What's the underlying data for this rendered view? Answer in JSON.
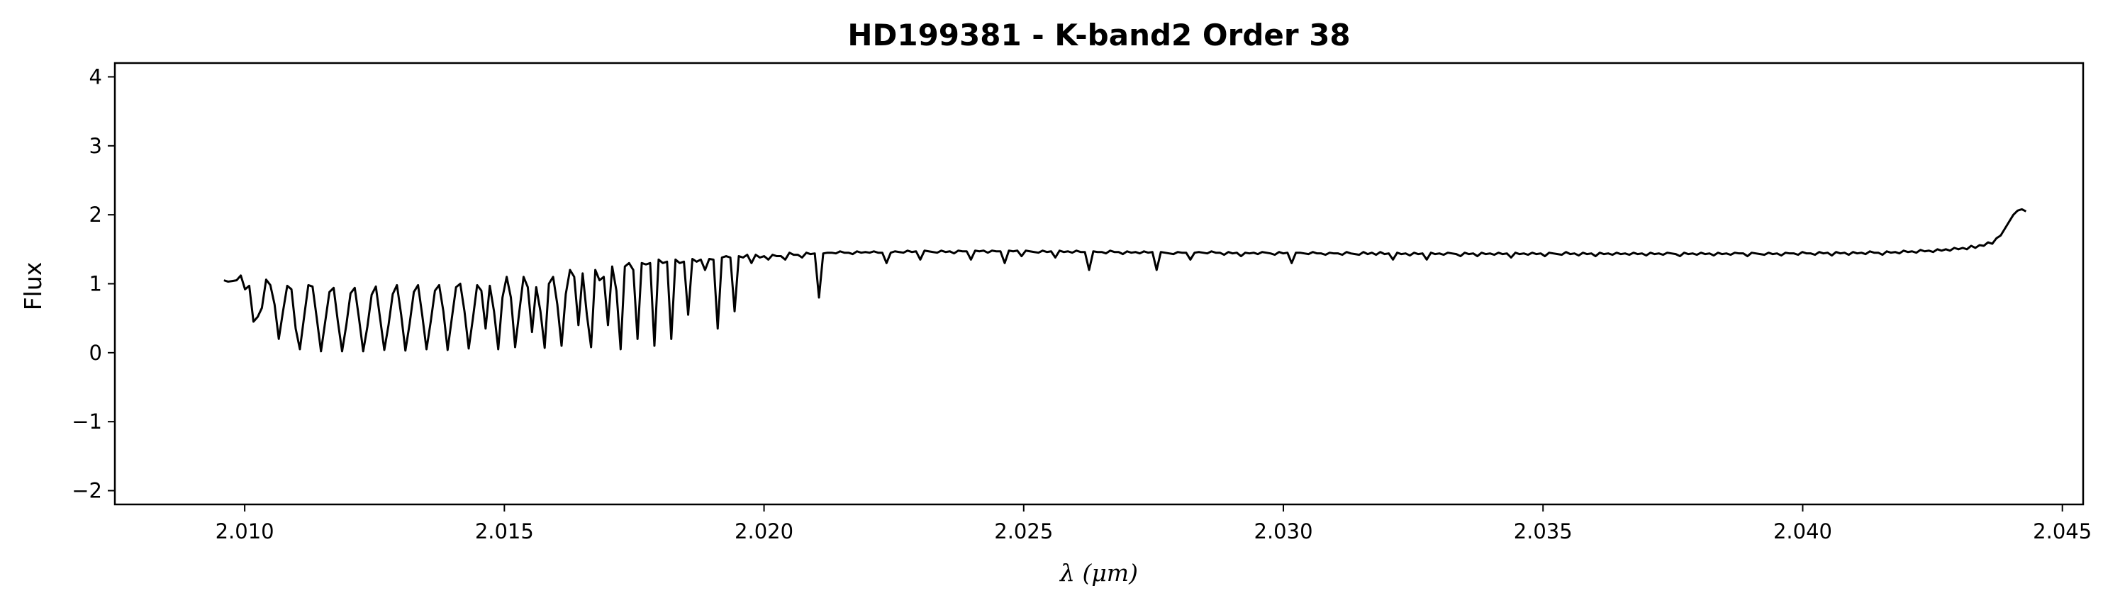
{
  "chart_data": {
    "type": "line",
    "title": "HD199381 - K-band2 Order 38",
    "xlabel": "λ (μm)",
    "ylabel": "Flux",
    "xlim": [
      2.0075,
      2.0454
    ],
    "ylim": [
      -2.2,
      4.2
    ],
    "xticks": [
      2.01,
      2.015,
      2.02,
      2.025,
      2.03,
      2.035,
      2.04,
      2.045
    ],
    "xtick_labels": [
      "2.010",
      "2.015",
      "2.020",
      "2.025",
      "2.030",
      "2.035",
      "2.040",
      "2.045"
    ],
    "yticks": [
      -2,
      -1,
      0,
      1,
      2,
      3,
      4
    ],
    "ytick_labels": [
      "−2",
      "−1",
      "0",
      "1",
      "2",
      "3",
      "4"
    ],
    "grid": false,
    "legend": "none",
    "line_color": "#000000",
    "series": [
      {
        "x_start": 2.0096,
        "x_end": 2.0443,
        "x_step": 0.0001,
        "y": [
          1.05,
          1.03,
          1.04,
          1.05,
          1.12,
          0.92,
          0.97,
          0.45,
          0.52,
          0.65,
          1.06,
          0.98,
          0.7,
          0.2,
          0.6,
          0.97,
          0.92,
          0.35,
          0.05,
          0.52,
          0.98,
          0.96,
          0.5,
          0.02,
          0.45,
          0.88,
          0.94,
          0.45,
          0.02,
          0.4,
          0.86,
          0.94,
          0.5,
          0.02,
          0.38,
          0.84,
          0.96,
          0.5,
          0.04,
          0.4,
          0.85,
          0.98,
          0.55,
          0.03,
          0.42,
          0.88,
          0.98,
          0.54,
          0.05,
          0.45,
          0.9,
          0.98,
          0.6,
          0.04,
          0.5,
          0.95,
          1.0,
          0.6,
          0.06,
          0.5,
          0.98,
          0.9,
          0.35,
          0.97,
          0.6,
          0.05,
          0.8,
          1.1,
          0.8,
          0.08,
          0.6,
          1.1,
          0.95,
          0.3,
          0.95,
          0.6,
          0.07,
          1.0,
          1.1,
          0.7,
          0.1,
          0.85,
          1.2,
          1.1,
          0.4,
          1.15,
          0.55,
          0.08,
          1.2,
          1.05,
          1.1,
          0.4,
          1.25,
          0.9,
          0.05,
          1.25,
          1.3,
          1.2,
          0.2,
          1.3,
          1.28,
          1.3,
          0.1,
          1.35,
          1.3,
          1.32,
          0.2,
          1.35,
          1.3,
          1.32,
          0.55,
          1.36,
          1.32,
          1.35,
          1.2,
          1.36,
          1.35,
          0.35,
          1.38,
          1.4,
          1.38,
          0.6,
          1.4,
          1.38,
          1.42,
          1.3,
          1.42,
          1.38,
          1.4,
          1.35,
          1.42,
          1.4,
          1.4,
          1.35,
          1.45,
          1.42,
          1.42,
          1.38,
          1.45,
          1.43,
          1.44,
          0.8,
          1.44,
          1.45,
          1.45,
          1.44,
          1.47,
          1.45,
          1.45,
          1.43,
          1.47,
          1.45,
          1.46,
          1.45,
          1.47,
          1.45,
          1.45,
          1.3,
          1.45,
          1.47,
          1.46,
          1.45,
          1.48,
          1.46,
          1.47,
          1.35,
          1.48,
          1.47,
          1.46,
          1.45,
          1.48,
          1.46,
          1.47,
          1.44,
          1.48,
          1.47,
          1.47,
          1.35,
          1.48,
          1.47,
          1.48,
          1.45,
          1.48,
          1.47,
          1.47,
          1.3,
          1.48,
          1.47,
          1.48,
          1.4,
          1.48,
          1.47,
          1.46,
          1.45,
          1.48,
          1.46,
          1.47,
          1.38,
          1.48,
          1.46,
          1.47,
          1.45,
          1.48,
          1.46,
          1.46,
          1.2,
          1.47,
          1.46,
          1.46,
          1.44,
          1.48,
          1.46,
          1.46,
          1.43,
          1.47,
          1.45,
          1.46,
          1.44,
          1.47,
          1.45,
          1.46,
          1.2,
          1.46,
          1.45,
          1.44,
          1.43,
          1.46,
          1.45,
          1.45,
          1.35,
          1.45,
          1.46,
          1.45,
          1.44,
          1.47,
          1.45,
          1.45,
          1.42,
          1.46,
          1.44,
          1.45,
          1.4,
          1.45,
          1.44,
          1.45,
          1.43,
          1.46,
          1.45,
          1.44,
          1.42,
          1.46,
          1.44,
          1.45,
          1.3,
          1.45,
          1.45,
          1.44,
          1.43,
          1.46,
          1.44,
          1.44,
          1.42,
          1.45,
          1.44,
          1.44,
          1.42,
          1.46,
          1.44,
          1.43,
          1.42,
          1.46,
          1.43,
          1.45,
          1.42,
          1.46,
          1.43,
          1.44,
          1.35,
          1.45,
          1.43,
          1.44,
          1.41,
          1.45,
          1.43,
          1.44,
          1.35,
          1.45,
          1.43,
          1.44,
          1.42,
          1.45,
          1.44,
          1.43,
          1.4,
          1.45,
          1.43,
          1.44,
          1.4,
          1.45,
          1.43,
          1.44,
          1.42,
          1.45,
          1.43,
          1.44,
          1.38,
          1.45,
          1.43,
          1.44,
          1.42,
          1.45,
          1.43,
          1.44,
          1.4,
          1.45,
          1.44,
          1.43,
          1.42,
          1.46,
          1.43,
          1.44,
          1.41,
          1.45,
          1.43,
          1.44,
          1.4,
          1.45,
          1.43,
          1.44,
          1.42,
          1.45,
          1.43,
          1.44,
          1.42,
          1.45,
          1.43,
          1.44,
          1.41,
          1.45,
          1.43,
          1.44,
          1.42,
          1.45,
          1.44,
          1.43,
          1.4,
          1.45,
          1.43,
          1.44,
          1.42,
          1.45,
          1.43,
          1.44,
          1.41,
          1.45,
          1.43,
          1.44,
          1.42,
          1.45,
          1.44,
          1.44,
          1.4,
          1.45,
          1.44,
          1.43,
          1.42,
          1.45,
          1.43,
          1.44,
          1.41,
          1.45,
          1.44,
          1.44,
          1.42,
          1.46,
          1.44,
          1.44,
          1.42,
          1.46,
          1.44,
          1.45,
          1.41,
          1.46,
          1.44,
          1.45,
          1.42,
          1.46,
          1.44,
          1.45,
          1.43,
          1.47,
          1.45,
          1.45,
          1.42,
          1.47,
          1.45,
          1.46,
          1.44,
          1.48,
          1.46,
          1.47,
          1.45,
          1.49,
          1.47,
          1.48,
          1.46,
          1.5,
          1.48,
          1.5,
          1.48,
          1.52,
          1.5,
          1.52,
          1.5,
          1.55,
          1.52,
          1.56,
          1.55,
          1.6,
          1.58,
          1.66,
          1.7,
          1.8,
          1.9,
          2.0,
          2.06,
          2.08,
          2.05
        ]
      }
    ]
  }
}
